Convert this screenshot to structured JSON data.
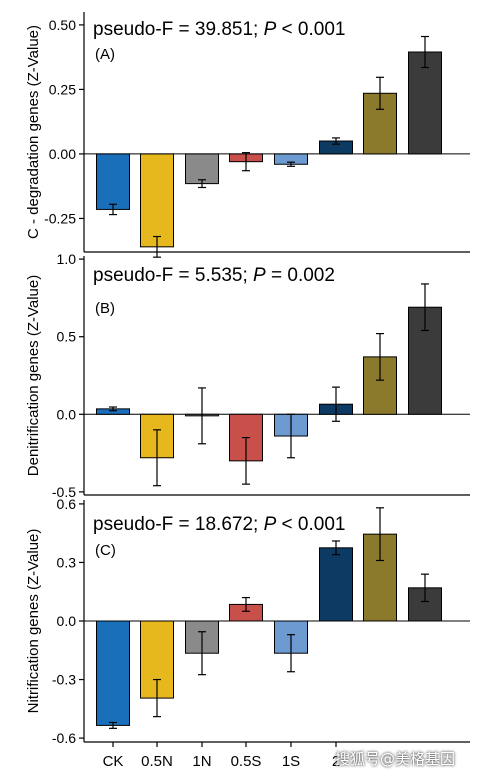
{
  "chart_data": [
    {
      "type": "bar",
      "panel": "(A)",
      "stat_prefix": "pseudo-F = 39.851; ",
      "stat_p": "P",
      "stat_suffix": " < 0.001",
      "ylabel": "C - degradation genes (Z-Value)",
      "ylim": [
        -0.38,
        0.55
      ],
      "yticks": [
        -0.25,
        0.0,
        0.25,
        0.5
      ],
      "ytick_labels": [
        "-0.25",
        "0.00",
        "0.25",
        "0.50"
      ],
      "categories": [
        "CK",
        "0.5N",
        "1N",
        "0.5S",
        "1S",
        "2",
        "",
        ""
      ],
      "values": [
        -0.215,
        -0.36,
        -0.115,
        -0.03,
        -0.04,
        0.05,
        0.235,
        0.395
      ],
      "errors": [
        0.02,
        0.04,
        0.015,
        0.035,
        0.008,
        0.012,
        0.062,
        0.06
      ],
      "colors": [
        "#1a6fba",
        "#e6b81e",
        "#8a8a8a",
        "#c9504a",
        "#6d9ad1",
        "#0d3a63",
        "#8c7a2c",
        "#3b3b3b"
      ]
    },
    {
      "type": "bar",
      "panel": "(B)",
      "stat_prefix": "pseudo-F = 5.535;  ",
      "stat_p": "P",
      "stat_suffix": " = 0.002",
      "ylabel": "Denitrification genes (Z-Value)",
      "ylim": [
        -0.52,
        1.02
      ],
      "yticks": [
        -0.5,
        0.0,
        0.5,
        1.0
      ],
      "ytick_labels": [
        "-0.5",
        "0.0",
        "0.5",
        "1.0"
      ],
      "categories": [
        "CK",
        "0.5N",
        "1N",
        "0.5S",
        "1S",
        "2",
        "",
        ""
      ],
      "values": [
        0.035,
        -0.28,
        -0.01,
        -0.3,
        -0.14,
        0.065,
        0.37,
        0.69
      ],
      "errors": [
        0.012,
        0.18,
        0.18,
        0.15,
        0.14,
        0.11,
        0.15,
        0.15
      ],
      "colors": [
        "#1a6fba",
        "#e6b81e",
        "#8a8a8a",
        "#c9504a",
        "#6d9ad1",
        "#0d3a63",
        "#8c7a2c",
        "#3b3b3b"
      ]
    },
    {
      "type": "bar",
      "panel": "(C)",
      "stat_prefix": "pseudo-F = 18.672; ",
      "stat_p": "P",
      "stat_suffix": " < 0.001",
      "ylabel": "Nitrification genes (Z-Value)",
      "ylim": [
        -0.62,
        0.62
      ],
      "yticks": [
        -0.6,
        -0.3,
        0.0,
        0.3,
        0.6
      ],
      "ytick_labels": [
        "-0.6",
        "-0.3",
        "0.0",
        "0.3",
        "0.6"
      ],
      "categories": [
        "CK",
        "0.5N",
        "1N",
        "0.5S",
        "1S",
        "2",
        "",
        ""
      ],
      "values": [
        -0.535,
        -0.395,
        -0.165,
        0.085,
        -0.165,
        0.375,
        0.445,
        0.17
      ],
      "errors": [
        0.015,
        0.095,
        0.11,
        0.035,
        0.095,
        0.035,
        0.135,
        0.07
      ],
      "colors": [
        "#1a6fba",
        "#e6b81e",
        "#8a8a8a",
        "#c9504a",
        "#6d9ad1",
        "#0d3a63",
        "#8c7a2c",
        "#3b3b3b"
      ]
    }
  ],
  "watermark": "搜狐号@美格基因"
}
